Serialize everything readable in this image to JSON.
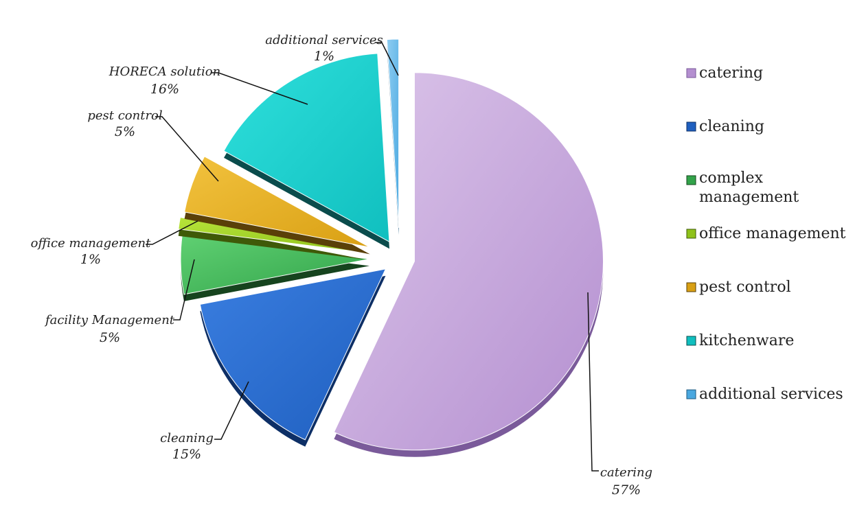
{
  "chart_data": {
    "type": "pie",
    "title": "",
    "slices": [
      {
        "name": "catering",
        "label": "catering",
        "value": 57,
        "value_label": "57%",
        "color": "#b48fd0",
        "dark": "#7a5a9a",
        "light": "#dcc6ea"
      },
      {
        "name": "cleaning",
        "label": "cleaning",
        "value": 15,
        "value_label": "15%",
        "color": "#1f5fbf",
        "dark": "#0d2f66",
        "light": "#3a7ee0"
      },
      {
        "name": "complex management",
        "label": "facility Management",
        "value": 5,
        "value_label": "5%",
        "color": "#32a34a",
        "dark": "#16441e",
        "light": "#5fd072"
      },
      {
        "name": "office management",
        "label": "office management",
        "value": 1,
        "value_label": "1%",
        "color": "#8fc21a",
        "dark": "#3f5a08",
        "light": "#b7e33a"
      },
      {
        "name": "pest control",
        "label": "pest control",
        "value": 5,
        "value_label": "5%",
        "color": "#d9a014",
        "dark": "#5a4008",
        "light": "#f2c23e"
      },
      {
        "name": "kitchenware",
        "label": "HORECA solution",
        "value": 16,
        "value_label": "16%",
        "color": "#10bfbf",
        "dark": "#0a4c4c",
        "light": "#2fe0dc"
      },
      {
        "name": "additional services",
        "label": "additional services",
        "value": 1,
        "value_label": "1%",
        "color": "#4aa8e0",
        "dark": "#1d5a80",
        "light": "#8ecdf2"
      }
    ],
    "legend": {
      "position": "right",
      "entries": [
        "catering",
        "cleaning",
        "complex management",
        "office management",
        "pest control",
        "kitchenware",
        "additional services"
      ]
    }
  }
}
